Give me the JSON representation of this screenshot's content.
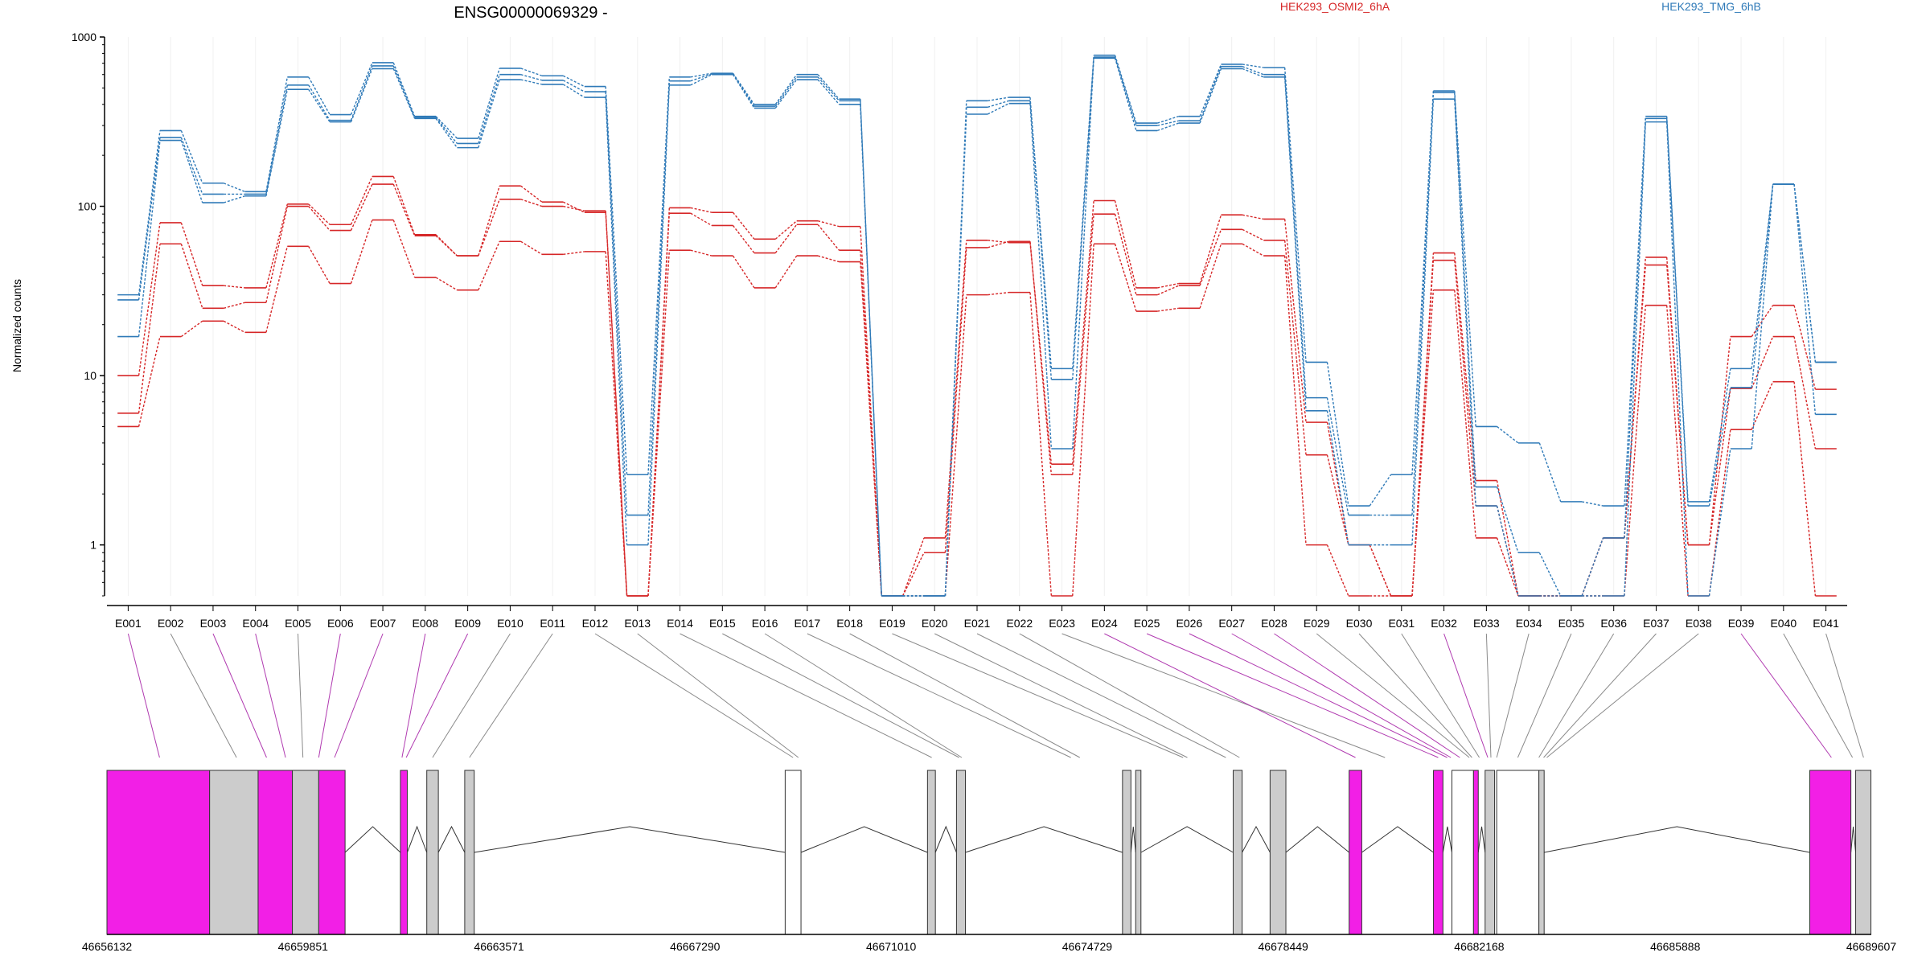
{
  "chart_data": {
    "type": "line",
    "title": "ENSG00000069329 -",
    "ylabel": "Normalized counts",
    "y_scale": "log",
    "ylim": [
      0.5,
      1000
    ],
    "y_ticks": [
      {
        "value": 1000,
        "label": "1000"
      },
      {
        "value": 100,
        "label": "100"
      },
      {
        "value": 10,
        "label": "10"
      },
      {
        "value": 1,
        "label": "1"
      }
    ],
    "legend": [
      {
        "name": "HEK293_OSMI2_6hA",
        "color": "#d62728"
      },
      {
        "name": "HEK293_TMG_6hB",
        "color": "#2f7ab8"
      }
    ],
    "grid": "faint vertical lines",
    "categories": [
      "E001",
      "E002",
      "E003",
      "E004",
      "E005",
      "E006",
      "E007",
      "E008",
      "E009",
      "E010",
      "E011",
      "E012",
      "E013",
      "E014",
      "E015",
      "E016",
      "E017",
      "E018",
      "E019",
      "E020",
      "E021",
      "E022",
      "E023",
      "E024",
      "E025",
      "E026",
      "E027",
      "E028",
      "E029",
      "E030",
      "E031",
      "E032",
      "E033",
      "E034",
      "E035",
      "E036",
      "E037",
      "E038",
      "E039",
      "E040",
      "E041"
    ],
    "series": [
      {
        "group": "HEK293_OSMI2_6hA",
        "color": "#d62728",
        "values": [
          10,
          80,
          34,
          33,
          103,
          78,
          150,
          68,
          51,
          132,
          106,
          92,
          0.5,
          98,
          92,
          64,
          82,
          76,
          0.5,
          1.1,
          63,
          61,
          3,
          108,
          33,
          35,
          89,
          84,
          5.3,
          1.0,
          0.5,
          53,
          2.4,
          0.5,
          0.5,
          1.1,
          50,
          1.0,
          17,
          26,
          8.3
        ]
      },
      {
        "group": "HEK293_OSMI2_6hA",
        "color": "#d62728",
        "values": [
          6,
          60,
          25,
          27,
          100,
          72,
          135,
          67,
          51,
          110,
          100,
          94,
          0.5,
          91,
          77,
          53,
          78,
          55,
          0.5,
          0.9,
          57,
          62,
          2.6,
          90,
          30,
          34,
          73,
          63,
          3.4,
          1.0,
          0.5,
          48,
          1.7,
          0.5,
          0.5,
          1.1,
          45,
          1.0,
          8.4,
          17,
          3.7
        ]
      },
      {
        "group": "HEK293_OSMI2_6hA",
        "color": "#d62728",
        "values": [
          5,
          17,
          21,
          18,
          58,
          35,
          83,
          38,
          32,
          62,
          52,
          54,
          0.5,
          55,
          51,
          33,
          51,
          47,
          0.5,
          0.5,
          30,
          31,
          0.5,
          60,
          24,
          25,
          60,
          51,
          1.0,
          0.5,
          0.5,
          32,
          1.1,
          0.5,
          0.5,
          0.5,
          26,
          0.5,
          4.8,
          9.2,
          0.5
        ]
      },
      {
        "group": "HEK293_TMG_6hB",
        "color": "#2f7ab8",
        "values": [
          30,
          280,
          137,
          122,
          580,
          348,
          705,
          340,
          252,
          653,
          590,
          510,
          2.6,
          580,
          610,
          400,
          600,
          430,
          0.5,
          0.5,
          420,
          440,
          11,
          780,
          310,
          340,
          690,
          660,
          12,
          1.7,
          2.6,
          480,
          5.0,
          4.0,
          1.8,
          1.7,
          340,
          1.8,
          11,
          135,
          12
        ]
      },
      {
        "group": "HEK293_TMG_6hB",
        "color": "#2f7ab8",
        "values": [
          28,
          255,
          118,
          118,
          520,
          322,
          675,
          335,
          235,
          600,
          555,
          475,
          1.5,
          550,
          605,
          390,
          580,
          420,
          0.5,
          0.5,
          385,
          420,
          9.5,
          760,
          300,
          320,
          670,
          600,
          7.4,
          1.5,
          1.5,
          470,
          2.2,
          0.9,
          0.5,
          1.1,
          330,
          1.7,
          8.5,
          135,
          12
        ]
      },
      {
        "group": "HEK293_TMG_6hB",
        "color": "#2f7ab8",
        "values": [
          17,
          245,
          105,
          115,
          490,
          315,
          650,
          330,
          222,
          560,
          525,
          440,
          1.0,
          520,
          600,
          380,
          560,
          400,
          0.5,
          0.5,
          350,
          405,
          3.7,
          750,
          280,
          310,
          650,
          580,
          6.2,
          1.0,
          1.0,
          430,
          1.7,
          0.5,
          0.5,
          0.5,
          315,
          0.5,
          3.7,
          135,
          5.9
        ]
      }
    ],
    "genomic_axis": {
      "tick_labels": [
        "46656132",
        "46659851",
        "46663571",
        "46667290",
        "46671010",
        "46674729",
        "46678449",
        "46682168",
        "46685888",
        "46689607"
      ],
      "range": [
        46656132,
        46689607
      ]
    },
    "exon_colors": {
      "highlighted": "#f21fe6",
      "normal": "#cccccc",
      "empty": "#ffffff"
    },
    "exon_models": [
      {
        "start": 46656132,
        "end": 46658080,
        "kind": "highlighted"
      },
      {
        "start": 46658080,
        "end": 46659000,
        "kind": "normal"
      },
      {
        "start": 46659000,
        "end": 46659650,
        "kind": "highlighted"
      },
      {
        "start": 46659650,
        "end": 46660150,
        "kind": "normal"
      },
      {
        "start": 46660150,
        "end": 46660650,
        "kind": "highlighted"
      },
      {
        "start": 46661700,
        "end": 46661830,
        "kind": "highlighted"
      },
      {
        "start": 46662200,
        "end": 46662420,
        "kind": "normal"
      },
      {
        "start": 46662920,
        "end": 46663100,
        "kind": "normal"
      },
      {
        "start": 46669000,
        "end": 46669300,
        "kind": "empty"
      },
      {
        "start": 46671700,
        "end": 46671850,
        "kind": "normal"
      },
      {
        "start": 46672250,
        "end": 46672420,
        "kind": "normal"
      },
      {
        "start": 46675400,
        "end": 46675560,
        "kind": "normal"
      },
      {
        "start": 46675650,
        "end": 46675750,
        "kind": "normal"
      },
      {
        "start": 46677500,
        "end": 46677670,
        "kind": "normal"
      },
      {
        "start": 46678200,
        "end": 46678500,
        "kind": "normal"
      },
      {
        "start": 46679700,
        "end": 46679940,
        "kind": "highlighted"
      },
      {
        "start": 46681300,
        "end": 46681480,
        "kind": "highlighted"
      },
      {
        "start": 46681650,
        "end": 46682060,
        "kind": "empty"
      },
      {
        "start": 46682060,
        "end": 46682150,
        "kind": "highlighted"
      },
      {
        "start": 46682280,
        "end": 46682460,
        "kind": "normal"
      },
      {
        "start": 46682500,
        "end": 46683300,
        "kind": "empty"
      },
      {
        "start": 46683300,
        "end": 46683400,
        "kind": "normal"
      },
      {
        "start": 46688440,
        "end": 46689220,
        "kind": "highlighted"
      },
      {
        "start": 46689310,
        "end": 46689600,
        "kind": "normal"
      }
    ],
    "bin_connectors": [
      {
        "bin": "E001",
        "target": 46657130,
        "highlighted": true
      },
      {
        "bin": "E002",
        "target": 46658590,
        "highlighted": false
      },
      {
        "bin": "E003",
        "target": 46659160,
        "highlighted": true
      },
      {
        "bin": "E004",
        "target": 46659520,
        "highlighted": true
      },
      {
        "bin": "E005",
        "target": 46659850,
        "highlighted": false
      },
      {
        "bin": "E006",
        "target": 46660150,
        "highlighted": true
      },
      {
        "bin": "E007",
        "target": 46660450,
        "highlighted": true
      },
      {
        "bin": "E008",
        "target": 46661730,
        "highlighted": true
      },
      {
        "bin": "E009",
        "target": 46661810,
        "highlighted": true
      },
      {
        "bin": "E010",
        "target": 46662310,
        "highlighted": false
      },
      {
        "bin": "E011",
        "target": 46663010,
        "highlighted": false
      },
      {
        "bin": "E012",
        "target": 46669150,
        "highlighted": false
      },
      {
        "bin": "E013",
        "target": 46669250,
        "highlighted": false
      },
      {
        "bin": "E014",
        "target": 46671780,
        "highlighted": false
      },
      {
        "bin": "E015",
        "target": 46672300,
        "highlighted": false
      },
      {
        "bin": "E016",
        "target": 46672350,
        "highlighted": false
      },
      {
        "bin": "E017",
        "target": 46674420,
        "highlighted": false
      },
      {
        "bin": "E018",
        "target": 46674590,
        "highlighted": false
      },
      {
        "bin": "E019",
        "target": 46676550,
        "highlighted": false
      },
      {
        "bin": "E020",
        "target": 46676630,
        "highlighted": false
      },
      {
        "bin": "E021",
        "target": 46677360,
        "highlighted": false
      },
      {
        "bin": "E022",
        "target": 46677620,
        "highlighted": false
      },
      {
        "bin": "E023",
        "target": 46680380,
        "highlighted": false
      },
      {
        "bin": "E024",
        "target": 46679820,
        "highlighted": true
      },
      {
        "bin": "E025",
        "target": 46681390,
        "highlighted": true
      },
      {
        "bin": "E026",
        "target": 46681560,
        "highlighted": true
      },
      {
        "bin": "E027",
        "target": 46681630,
        "highlighted": true
      },
      {
        "bin": "E028",
        "target": 46681800,
        "highlighted": true
      },
      {
        "bin": "E029",
        "target": 46681980,
        "highlighted": false
      },
      {
        "bin": "E030",
        "target": 46682030,
        "highlighted": false
      },
      {
        "bin": "E031",
        "target": 46682170,
        "highlighted": false
      },
      {
        "bin": "E032",
        "target": 46682330,
        "highlighted": true
      },
      {
        "bin": "E033",
        "target": 46682390,
        "highlighted": false
      },
      {
        "bin": "E034",
        "target": 46682500,
        "highlighted": false
      },
      {
        "bin": "E035",
        "target": 46682900,
        "highlighted": false
      },
      {
        "bin": "E036",
        "target": 46683300,
        "highlighted": false
      },
      {
        "bin": "E037",
        "target": 46683390,
        "highlighted": false
      },
      {
        "bin": "E038",
        "target": 46683450,
        "highlighted": false
      },
      {
        "bin": "E039",
        "target": 46688850,
        "highlighted": true
      },
      {
        "bin": "E040",
        "target": 46689250,
        "highlighted": false
      },
      {
        "bin": "E041",
        "target": 46689460,
        "highlighted": false
      }
    ]
  }
}
